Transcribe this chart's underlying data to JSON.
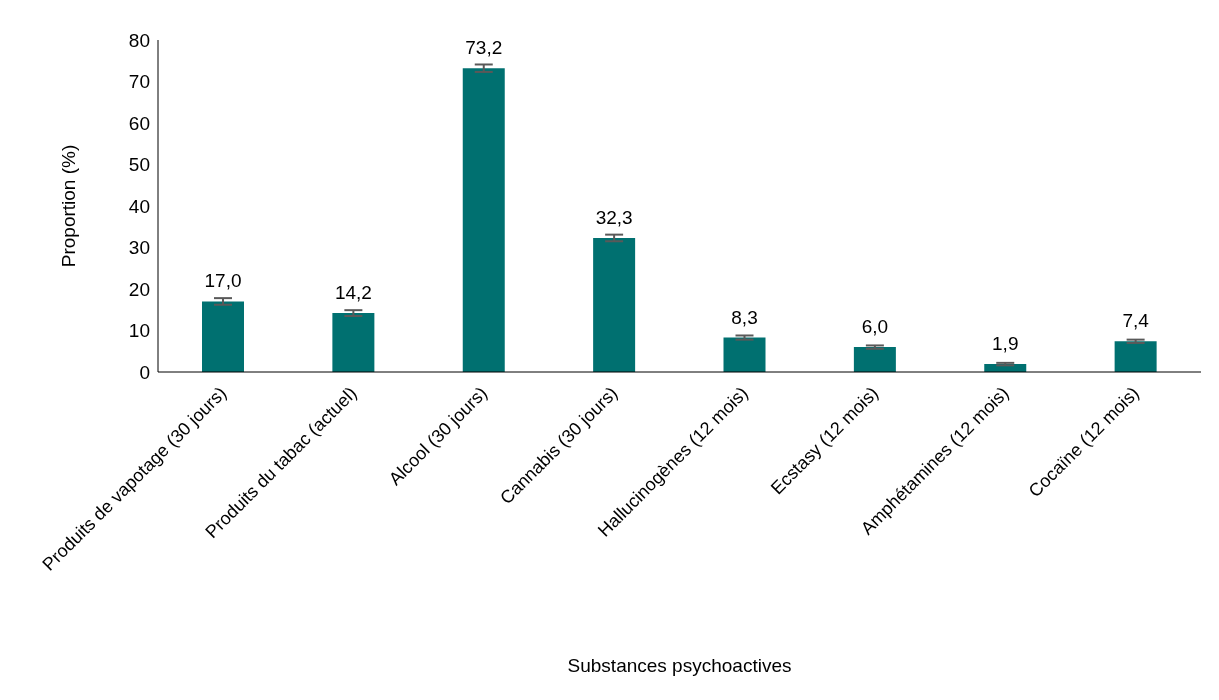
{
  "chart_data": {
    "type": "bar",
    "xlabel": "Substances psychoactives",
    "ylabel": "Proportion (%)",
    "categories": [
      "Produits de vapotage (30 jours)",
      "Produits du tabac (actuel)",
      "Alcool (30 jours)",
      "Cannabis (30 jours)",
      "Hallucinogènes (12 mois)",
      "Ecstasy (12 mois)",
      "Amphétamines (12 mois)",
      "Cocaïne (12 mois)"
    ],
    "values": [
      17.0,
      14.2,
      73.2,
      32.3,
      8.3,
      6.0,
      1.9,
      7.4
    ],
    "errors": [
      0.8,
      0.7,
      0.9,
      0.8,
      0.5,
      0.4,
      0.3,
      0.4
    ],
    "value_labels": [
      "17,0",
      "14,2",
      "73,2",
      "32,3",
      "8,3",
      "6,0",
      "1,9",
      "7,4"
    ],
    "color": "#007070",
    "ylim": [
      0,
      80
    ],
    "yticks": [
      0,
      10,
      20,
      30,
      40,
      50,
      60,
      70,
      80
    ],
    "grid": false,
    "legend": false
  }
}
